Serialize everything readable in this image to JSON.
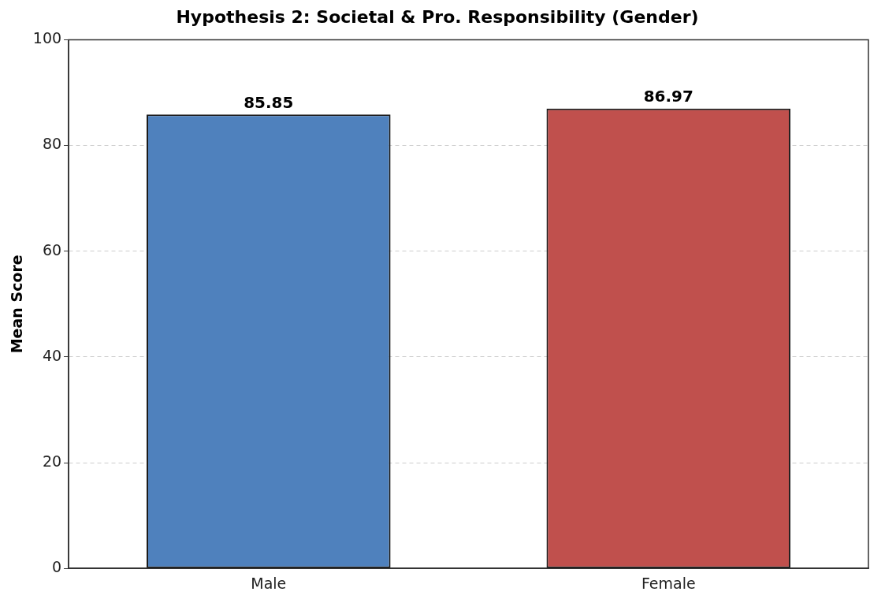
{
  "chart_data": {
    "type": "bar",
    "title": "Hypothesis 2: Societal & Pro. Responsibility (Gender)",
    "ylabel": "Mean Score",
    "categories": [
      "Male",
      "Female"
    ],
    "values": [
      85.85,
      86.97
    ],
    "colors": [
      "#4f81bd",
      "#c0504d"
    ],
    "ylim": [
      0,
      100
    ],
    "yticks": [
      0,
      20,
      40,
      60,
      80,
      100
    ],
    "grid": "y",
    "data_labels": true,
    "legend": false
  }
}
